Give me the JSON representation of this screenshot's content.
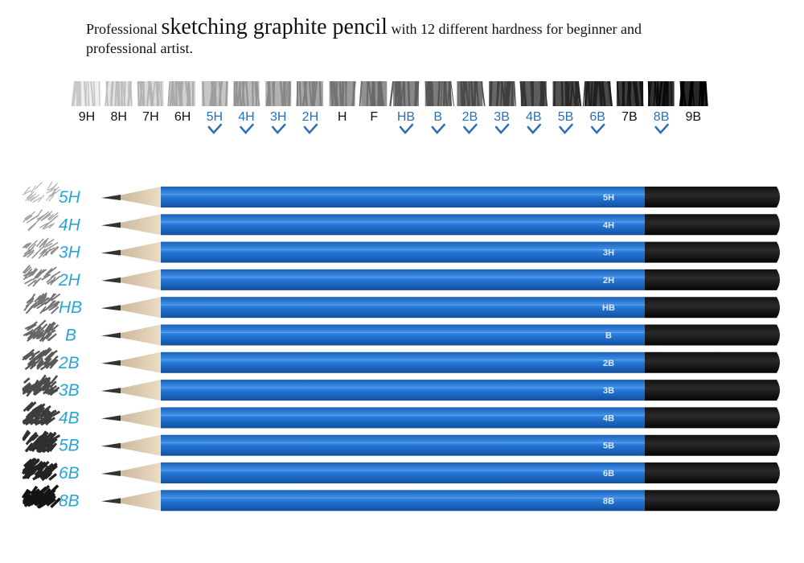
{
  "header": {
    "lead": "Professional",
    "highlight": "sketching graphite pencil",
    "tail": "with 12 different hardness for beginner and",
    "line2": "professional artist."
  },
  "scale": [
    {
      "label": "9H",
      "included": false
    },
    {
      "label": "8H",
      "included": false
    },
    {
      "label": "7H",
      "included": false
    },
    {
      "label": "6H",
      "included": false
    },
    {
      "label": "5H",
      "included": true
    },
    {
      "label": "4H",
      "included": true
    },
    {
      "label": "3H",
      "included": true
    },
    {
      "label": "2H",
      "included": true
    },
    {
      "label": "H",
      "included": false
    },
    {
      "label": "F",
      "included": false
    },
    {
      "label": "HB",
      "included": true
    },
    {
      "label": "B",
      "included": true
    },
    {
      "label": "2B",
      "included": true
    },
    {
      "label": "3B",
      "included": true
    },
    {
      "label": "4B",
      "included": true
    },
    {
      "label": "5B",
      "included": true
    },
    {
      "label": "6B",
      "included": true
    },
    {
      "label": "7B",
      "included": false
    },
    {
      "label": "8B",
      "included": true
    },
    {
      "label": "9B",
      "included": false
    }
  ],
  "pencils": [
    "5H",
    "4H",
    "3H",
    "2H",
    "HB",
    "B",
    "2B",
    "3B",
    "4B",
    "5B",
    "6B",
    "8B"
  ]
}
